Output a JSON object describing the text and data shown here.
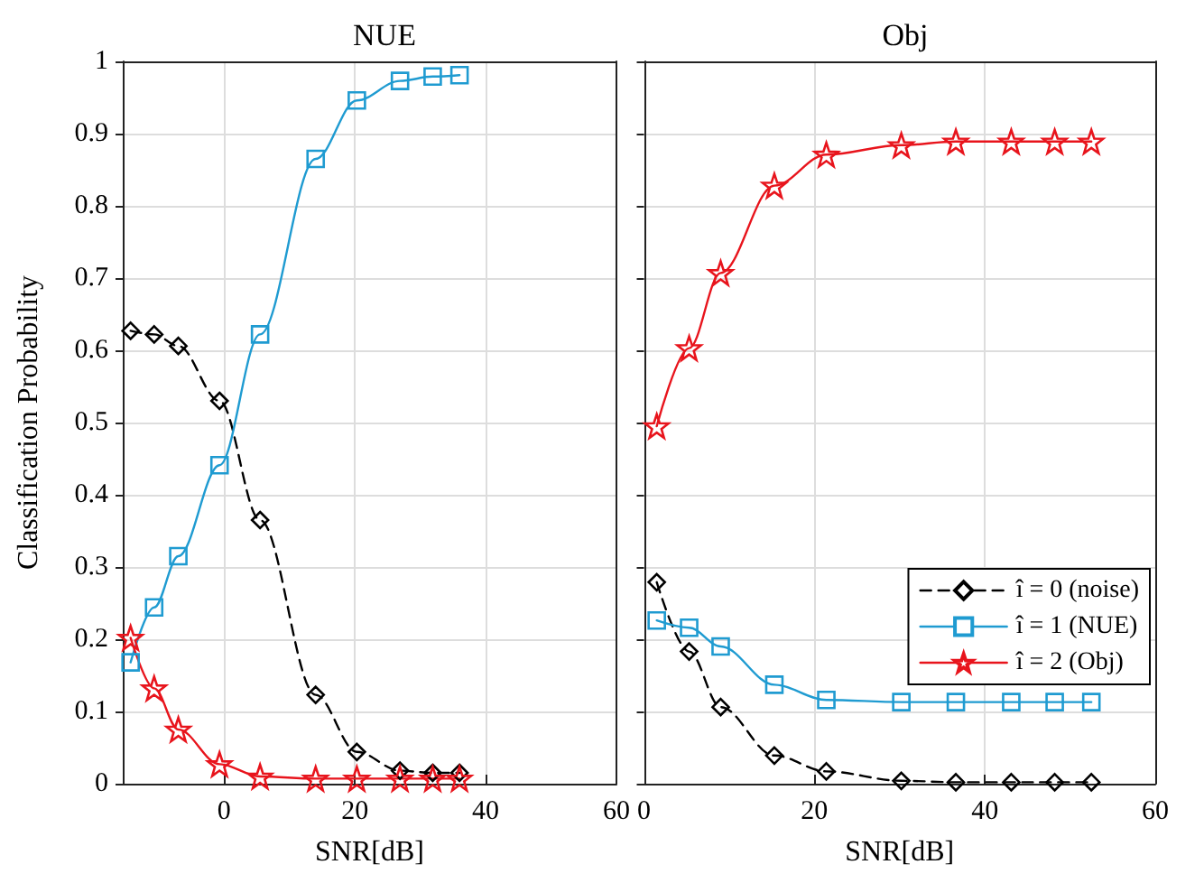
{
  "chart_data": [
    {
      "type": "line",
      "title": "NUE",
      "xlabel": "SNR[dB]",
      "ylabel": "Classification Probability",
      "x": [
        -14.3,
        -10.7,
        -7,
        -0.7,
        5.5,
        14,
        20.3,
        26.9,
        31.9,
        36
      ],
      "series": [
        {
          "color": "#000000",
          "marker": "diamond",
          "line_style": "dashed",
          "values": [
            0.627,
            0.622,
            0.606,
            0.53,
            0.365,
            0.123,
            0.044,
            0.018,
            0.015,
            0.015
          ]
        },
        {
          "color": "#1f9bd1",
          "marker": "square",
          "line_style": "solid",
          "values": [
            0.168,
            0.244,
            0.315,
            0.441,
            0.622,
            0.865,
            0.946,
            0.973,
            0.979,
            0.981
          ]
        },
        {
          "color": "#e8141c",
          "marker": "star",
          "line_style": "solid",
          "values": [
            0.202,
            0.132,
            0.075,
            0.027,
            0.01,
            0.007,
            0.007,
            0.007,
            0.007,
            0.007
          ]
        }
      ],
      "xlim": [
        -15.5,
        60
      ],
      "xticks": [
        0,
        20,
        40,
        60
      ],
      "ylim": [
        0,
        1
      ],
      "yticks": [
        0,
        0.1,
        0.2,
        0.3,
        0.4,
        0.5,
        0.6,
        0.7,
        0.8,
        0.9,
        1
      ],
      "grid": true,
      "legend": false
    },
    {
      "type": "line",
      "title": "Obj",
      "xlabel": "SNR[dB]",
      "x": [
        1.5,
        5.3,
        9,
        15.3,
        21.4,
        30.2,
        36.6,
        43.1,
        48.2,
        52.5
      ],
      "series": [
        {
          "name": "î = 0 (noise)",
          "color": "#000000",
          "marker": "diamond",
          "line_style": "dashed",
          "values": [
            0.279,
            0.183,
            0.106,
            0.039,
            0.017,
            0.004,
            0.002,
            0.002,
            0.002,
            0.002
          ]
        },
        {
          "name": "î = 1 (NUE)",
          "color": "#1f9bd1",
          "marker": "square",
          "line_style": "solid",
          "values": [
            0.226,
            0.216,
            0.19,
            0.137,
            0.116,
            0.113,
            0.113,
            0.113,
            0.113,
            0.113
          ]
        },
        {
          "name": "î = 2 (Obj)",
          "color": "#e8141c",
          "marker": "star",
          "line_style": "solid",
          "values": [
            0.495,
            0.603,
            0.707,
            0.828,
            0.871,
            0.884,
            0.889,
            0.889,
            0.889,
            0.889
          ]
        }
      ],
      "xlim": [
        0,
        60
      ],
      "xticks": [
        0,
        20,
        40,
        60
      ],
      "ylim": [
        0,
        1
      ],
      "yticks": [
        0,
        0.1,
        0.2,
        0.3,
        0.4,
        0.5,
        0.6,
        0.7,
        0.8,
        0.9,
        1
      ],
      "grid": true,
      "legend": "bottom right",
      "tick_labels": "x"
    }
  ]
}
